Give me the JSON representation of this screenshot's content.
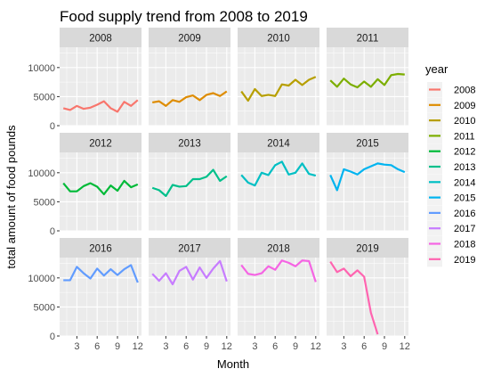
{
  "chart_data": {
    "type": "line",
    "title": "Food supply trend from 2008 to 2019",
    "xlabel": "Month",
    "ylabel": "total amount of food pounds",
    "xlim": [
      1,
      12
    ],
    "ylim": [
      0,
      13500
    ],
    "x_ticks": [
      3,
      6,
      9,
      12
    ],
    "y_ticks": [
      0,
      5000,
      10000
    ],
    "legend_title": "year",
    "legend_position": "right",
    "facet_layout": "3 rows x 4 columns",
    "x": [
      1,
      2,
      3,
      4,
      5,
      6,
      7,
      8,
      9,
      10,
      11,
      12
    ],
    "series": [
      {
        "name": "2008",
        "color": "#F8766D",
        "values": [
          3000,
          2700,
          3400,
          2900,
          3100,
          3600,
          4200,
          3000,
          2400,
          4100,
          3400,
          4400
        ]
      },
      {
        "name": "2009",
        "color": "#DE8C00",
        "values": [
          4000,
          4200,
          3400,
          4400,
          4100,
          4900,
          5200,
          4400,
          5300,
          5600,
          5100,
          5900
        ]
      },
      {
        "name": "2010",
        "color": "#B79F00",
        "values": [
          5900,
          4300,
          6300,
          5100,
          5300,
          5100,
          7100,
          6900,
          7900,
          7000,
          7900,
          8400
        ]
      },
      {
        "name": "2011",
        "color": "#7CAE00",
        "values": [
          7800,
          6700,
          8100,
          7100,
          6600,
          7600,
          6700,
          8000,
          7000,
          8700,
          8900,
          8800
        ]
      },
      {
        "name": "2012",
        "color": "#00BA38",
        "values": [
          8200,
          6800,
          6800,
          7700,
          8200,
          7600,
          6300,
          7800,
          6900,
          8600,
          7500,
          8000
        ]
      },
      {
        "name": "2013",
        "color": "#00C08B",
        "values": [
          7400,
          7000,
          6000,
          7900,
          7600,
          7700,
          8900,
          8900,
          9300,
          10500,
          8600,
          9400
        ]
      },
      {
        "name": "2014",
        "color": "#00BFC4",
        "values": [
          9600,
          8300,
          7800,
          10000,
          9600,
          11300,
          11900,
          9700,
          10000,
          11600,
          9800,
          9500
        ]
      },
      {
        "name": "2015",
        "color": "#00B4F0",
        "values": [
          9600,
          7000,
          10600,
          10200,
          9700,
          10600,
          11100,
          11600,
          11400,
          11300,
          10600,
          10100
        ]
      },
      {
        "name": "2016",
        "color": "#619CFF",
        "values": [
          9600,
          9600,
          11900,
          10800,
          9900,
          11600,
          10400,
          11500,
          10500,
          11500,
          12200,
          9200
        ]
      },
      {
        "name": "2017",
        "color": "#C77CFF",
        "values": [
          10700,
          9500,
          10800,
          8900,
          11200,
          11900,
          9700,
          11800,
          10000,
          11600,
          12900,
          9400
        ]
      },
      {
        "name": "2018",
        "color": "#F564E3",
        "values": [
          12200,
          10700,
          10500,
          10800,
          12000,
          11400,
          13000,
          12600,
          12000,
          13000,
          12900,
          9300
        ]
      },
      {
        "name": "2019",
        "color": "#FF64B0",
        "values": [
          12800,
          11000,
          11600,
          10300,
          11300,
          10200,
          4000,
          300,
          null,
          null,
          null,
          null
        ]
      }
    ]
  }
}
